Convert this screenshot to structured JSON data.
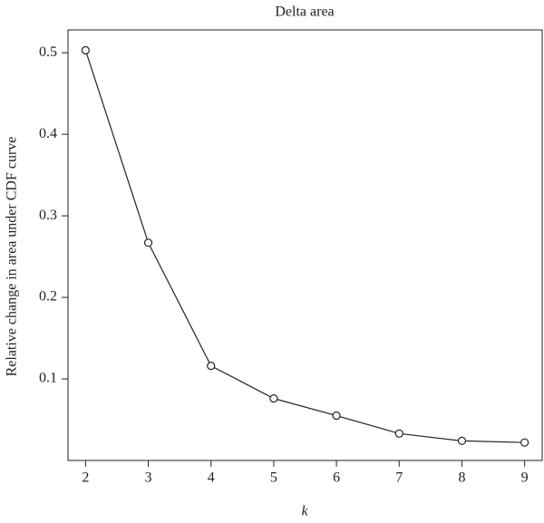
{
  "chart_data": {
    "type": "line",
    "title": "Delta area",
    "x_label": "k",
    "y_label": "Relative change in area under CDF curve",
    "x": [
      2,
      3,
      4,
      5,
      6,
      7,
      8,
      9
    ],
    "values": [
      0.503,
      0.267,
      0.116,
      0.076,
      0.055,
      0.033,
      0.024,
      0.022
    ],
    "color": "#222222",
    "xlim": [
      1.72,
      9.28
    ],
    "xticks": [
      2,
      3,
      4,
      5,
      6,
      7,
      8,
      9
    ],
    "ylim": [
      0.0,
      0.528
    ],
    "yticks": [
      0.1,
      0.2,
      0.3,
      0.4,
      0.5
    ]
  }
}
